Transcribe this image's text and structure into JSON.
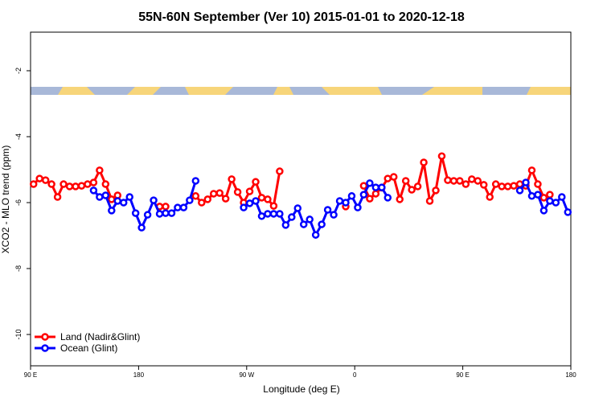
{
  "chart_data": {
    "type": "line",
    "title": "55N-60N September (Ver 10)   2015-01-01 to 2020-12-18",
    "x_label": "Longitude (deg E)",
    "y_label": "XCO2 - MLO trend (ppm)",
    "x": [
      92.5,
      97.5,
      102.5,
      107.5,
      112.5,
      117.5,
      122.5,
      127.5,
      132.5,
      137.5,
      142.5,
      147.5,
      152.5,
      157.5,
      162.5,
      167.5,
      172.5,
      177.5,
      182.5,
      187.5,
      192.5,
      197.5,
      202.5,
      207.5,
      212.5,
      217.5,
      222.5,
      227.5,
      232.5,
      237.5,
      242.5,
      247.5,
      252.5,
      257.5,
      262.5,
      267.5,
      272.5,
      277.5,
      282.5,
      287.5,
      292.5,
      297.5,
      302.5,
      307.5,
      312.5,
      317.5,
      322.5,
      327.5,
      332.5,
      337.5,
      342.5,
      347.5,
      352.5,
      357.5,
      362.5,
      367.5,
      372.5,
      377.5,
      382.5,
      387.5,
      392.5,
      397.5,
      402.5,
      407.5,
      412.5,
      417.5,
      422.5,
      427.5,
      432.5,
      437.5,
      442.5,
      447.5,
      452.5,
      457.5,
      462.5,
      467.5,
      472.5,
      477.5,
      482.5,
      487.5,
      492.5,
      497.5,
      502.5,
      507.5,
      512.5,
      517.5,
      522.5,
      527.5,
      532.5,
      537.5
    ],
    "series": [
      {
        "name": "Land (Nadir&Glint)",
        "color": "#ff0000",
        "values": [
          -5.44,
          -5.27,
          -5.32,
          -5.44,
          -5.83,
          -5.44,
          -5.51,
          -5.51,
          -5.49,
          -5.44,
          -5.39,
          -5.02,
          -5.44,
          -5.9,
          -5.78,
          null,
          null,
          null,
          null,
          null,
          null,
          -6.12,
          -6.12,
          null,
          null,
          null,
          null,
          -5.8,
          -6.0,
          -5.9,
          -5.73,
          -5.71,
          -5.88,
          -5.29,
          -5.68,
          -6.0,
          -5.66,
          -5.37,
          -5.85,
          -5.9,
          -6.1,
          -5.05,
          null,
          null,
          null,
          null,
          null,
          null,
          null,
          null,
          null,
          null,
          -6.12,
          null,
          null,
          -5.49,
          -5.88,
          -5.73,
          -5.55,
          -5.27,
          -5.22,
          -5.9,
          -5.34,
          -5.61,
          -5.51,
          -4.78,
          -5.95,
          -5.63,
          -4.59,
          -5.32,
          -5.34,
          -5.34,
          -5.44,
          -5.29,
          -5.34,
          -5.46,
          -5.83,
          -5.44,
          -5.51,
          -5.51,
          -5.49,
          -5.44,
          -5.49,
          -5.02,
          -5.44,
          -5.85,
          -5.76,
          null,
          null,
          null
        ]
      },
      {
        "name": "Ocean (Glint)",
        "color": "#0000ff",
        "values": [
          null,
          null,
          null,
          null,
          null,
          null,
          null,
          null,
          null,
          null,
          -5.63,
          -5.83,
          -5.78,
          -6.24,
          -5.95,
          -6.0,
          -5.83,
          -6.32,
          -6.76,
          -6.37,
          -5.93,
          -6.34,
          -6.32,
          -6.32,
          -6.15,
          -6.15,
          -5.93,
          -5.34,
          null,
          null,
          null,
          null,
          null,
          null,
          null,
          -6.15,
          -6.02,
          -5.95,
          -6.41,
          -6.34,
          -6.34,
          -6.34,
          -6.68,
          -6.44,
          -6.17,
          -6.66,
          -6.51,
          -6.98,
          -6.66,
          -6.22,
          -6.37,
          -5.95,
          -6.0,
          -5.8,
          -6.15,
          -5.76,
          -5.41,
          -5.54,
          -5.54,
          -5.85,
          null,
          null,
          null,
          null,
          null,
          null,
          null,
          null,
          null,
          null,
          null,
          null,
          null,
          null,
          null,
          null,
          null,
          null,
          null,
          null,
          null,
          -5.63,
          -5.39,
          -5.8,
          -5.76,
          -6.24,
          -5.95,
          -6.0,
          -5.83,
          -6.29
        ]
      }
    ],
    "xlim": [
      90,
      540
    ],
    "xticks": [
      {
        "value": 90,
        "label": "90 E"
      },
      {
        "value": 180,
        "label": "180"
      },
      {
        "value": 270,
        "label": "90 W"
      },
      {
        "value": 360,
        "label": "0"
      },
      {
        "value": 450,
        "label": "90 E"
      },
      {
        "value": 540,
        "label": "180"
      }
    ],
    "ylim": [
      -10.95,
      -0.83
    ],
    "yticks": [
      -10,
      -8,
      -6,
      -4,
      -2
    ],
    "legend": "bottom-left"
  }
}
